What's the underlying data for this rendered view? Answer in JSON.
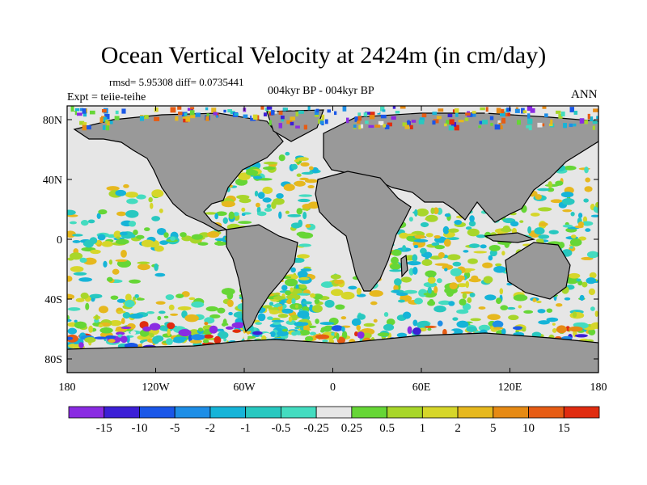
{
  "title": "Ocean Vertical Velocity at 2424m (in cm/day)",
  "stats": "rmsd= 5.95308 diff= 0.0735441",
  "experiment": "Expt = teiie-teihe",
  "period": "004kyr BP - 004kyr BP",
  "season": "ANN",
  "map": {
    "lon_ticks": [
      "180",
      "120W",
      "60W",
      "0",
      "60E",
      "120E",
      "180"
    ],
    "lat_ticks": [
      "80N",
      "40N",
      "0",
      "40S",
      "80S"
    ],
    "land_color": "#999999",
    "background_color": "#e6e6e6"
  },
  "colorbar": {
    "labels": [
      "-15",
      "-10",
      "-5",
      "-2",
      "-1",
      "-0.5",
      "-0.25",
      "0.25",
      "0.5",
      "1",
      "2",
      "5",
      "10",
      "15"
    ],
    "colors": [
      "#8a2be2",
      "#3c1fd6",
      "#1a57e8",
      "#1e8ee6",
      "#16b4d8",
      "#28c8c0",
      "#44dcc0",
      "#e6e6e6",
      "#66d636",
      "#a8d62a",
      "#d6d62a",
      "#e6b81e",
      "#e68a14",
      "#e65c14",
      "#e02c10"
    ]
  }
}
